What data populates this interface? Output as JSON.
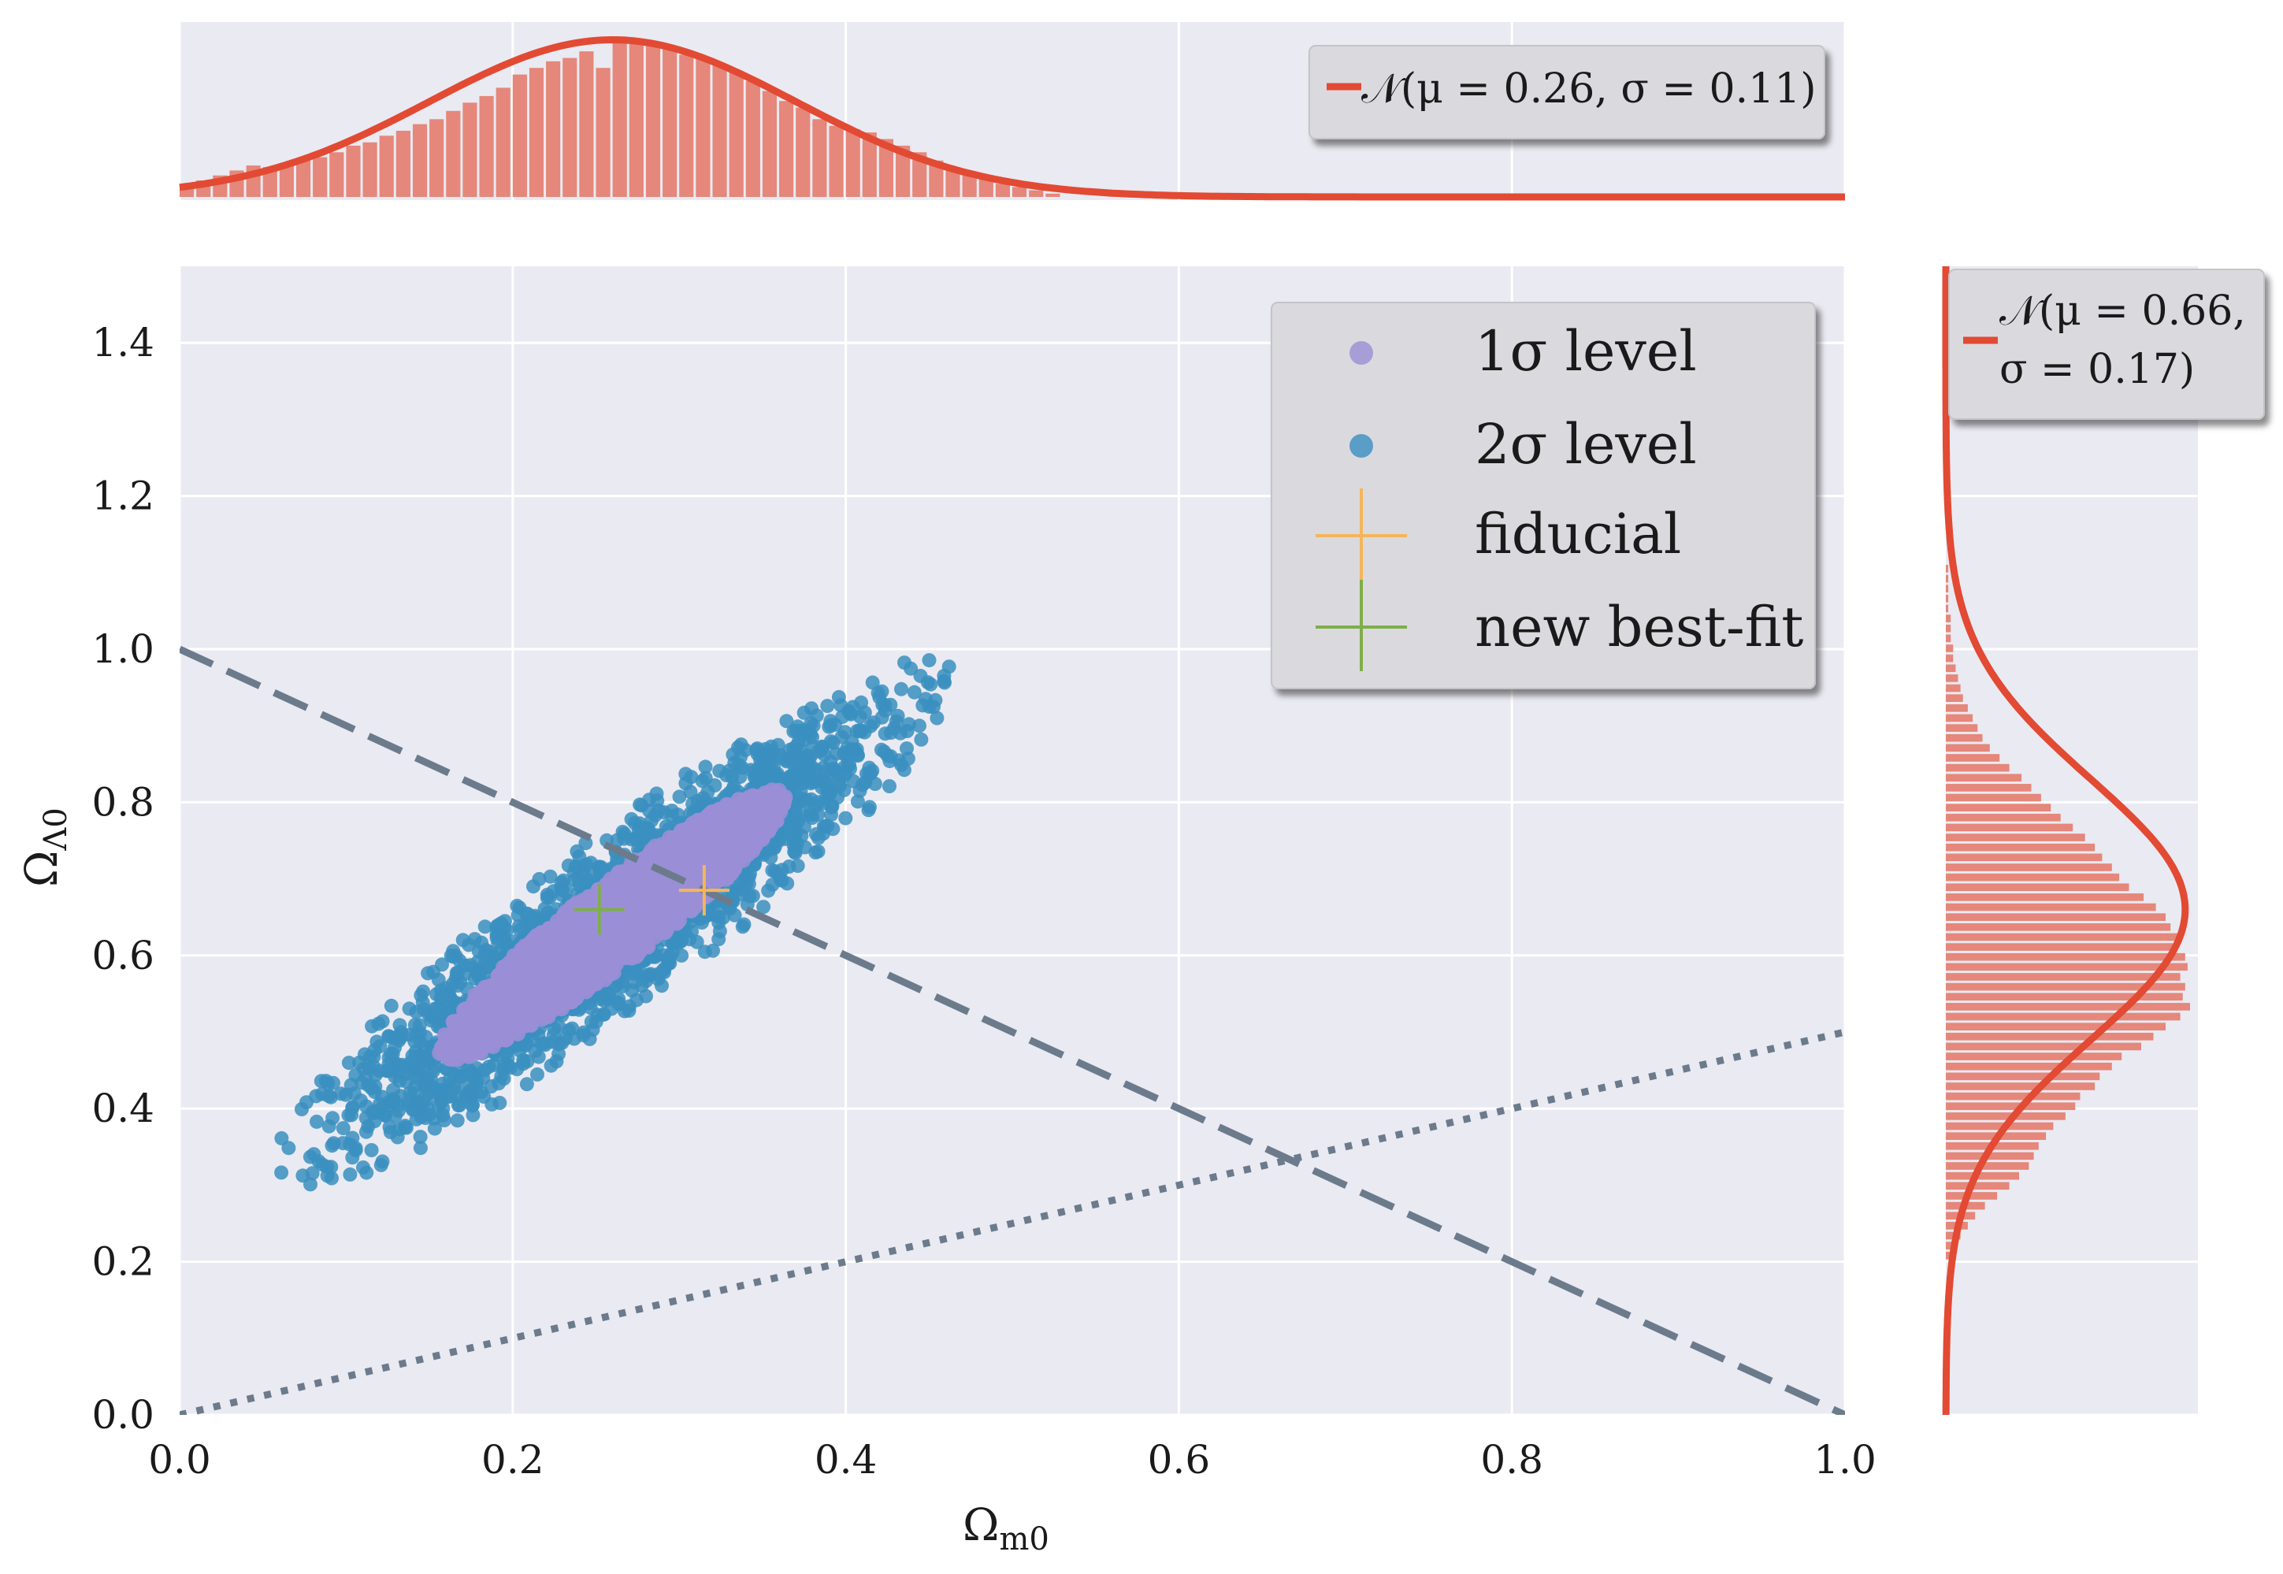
{
  "chart_data": [
    {
      "type": "scatter",
      "panel": "main",
      "xlabel": "Ω_m0",
      "ylabel": "Ω_Λ0",
      "xlim": [
        0.0,
        1.0
      ],
      "ylim": [
        0.0,
        1.5
      ],
      "xticks": [
        "0.0",
        "0.2",
        "0.4",
        "0.6",
        "0.8",
        "1.0"
      ],
      "yticks": [
        "0.0",
        "0.2",
        "0.4",
        "0.6",
        "0.8",
        "1.0",
        "1.2",
        "1.4"
      ],
      "grid": true,
      "legend_position": "top-right",
      "series": [
        {
          "name": "1σ level",
          "kind": "scatter-cloud",
          "color": "#9a8fd6",
          "extent": {
            "x_range": [
              0.03,
              0.45
            ],
            "y_range": [
              0.33,
              0.93
            ]
          }
        },
        {
          "name": "2σ level",
          "kind": "scatter-cloud",
          "color": "#3a8fc0",
          "extent": {
            "x_range": [
              0.0,
              0.55
            ],
            "y_range": [
              0.2,
              1.1
            ]
          }
        },
        {
          "name": "fiducial",
          "kind": "marker",
          "marker": "plus",
          "color": "#f5b55a",
          "x": 0.315,
          "y": 0.685
        },
        {
          "name": "new best-fit",
          "kind": "marker",
          "marker": "plus",
          "color": "#7fae4a",
          "x": 0.252,
          "y": 0.66
        }
      ],
      "reference_lines": [
        {
          "style": "dashed",
          "color": "#6b7b8c",
          "points": [
            [
              0.0,
              1.0
            ],
            [
              1.0,
              0.0
            ]
          ]
        },
        {
          "style": "dotted",
          "color": "#6b7b8c",
          "points": [
            [
              0.0,
              0.0
            ],
            [
              1.0,
              0.5
            ]
          ]
        }
      ]
    },
    {
      "type": "bar",
      "panel": "top-marginal",
      "variable": "Ω_m0",
      "orientation": "vertical",
      "color": "#e5877a",
      "bins": {
        "x_start": 0.0,
        "x_end": 0.53,
        "width": 0.01,
        "counts": [
          0.08,
          0.1,
          0.13,
          0.16,
          0.19,
          0.18,
          0.2,
          0.22,
          0.24,
          0.27,
          0.31,
          0.33,
          0.37,
          0.4,
          0.44,
          0.47,
          0.52,
          0.57,
          0.61,
          0.66,
          0.74,
          0.78,
          0.82,
          0.84,
          0.88,
          0.78,
          0.97,
          0.93,
          0.92,
          0.91,
          0.86,
          0.84,
          0.8,
          0.76,
          0.7,
          0.64,
          0.58,
          0.54,
          0.47,
          0.43,
          0.41,
          0.39,
          0.35,
          0.31,
          0.27,
          0.22,
          0.18,
          0.14,
          0.11,
          0.08,
          0.06,
          0.04,
          0.02
        ]
      },
      "fit": {
        "name": "𝒩(μ = 0.26, σ = 0.11)",
        "mu": 0.26,
        "sigma": 0.11,
        "peak": 0.95,
        "color": "#e24a33"
      },
      "legend_position": "top-right"
    },
    {
      "type": "bar",
      "panel": "right-marginal",
      "variable": "Ω_Λ0",
      "orientation": "horizontal",
      "color": "#e5877a",
      "bins": {
        "y_start": 0.2,
        "y_end": 1.11,
        "height": 0.013,
        "counts": [
          0.03,
          0.04,
          0.06,
          0.09,
          0.12,
          0.16,
          0.21,
          0.26,
          0.3,
          0.34,
          0.36,
          0.38,
          0.41,
          0.44,
          0.49,
          0.53,
          0.55,
          0.61,
          0.63,
          0.68,
          0.72,
          0.8,
          0.85,
          0.9,
          0.96,
          1.0,
          0.97,
          0.98,
          0.96,
          0.99,
          0.98,
          0.93,
          0.95,
          0.92,
          0.9,
          0.86,
          0.81,
          0.75,
          0.71,
          0.68,
          0.64,
          0.61,
          0.57,
          0.52,
          0.47,
          0.43,
          0.39,
          0.35,
          0.31,
          0.26,
          0.22,
          0.18,
          0.15,
          0.13,
          0.11,
          0.09,
          0.07,
          0.06,
          0.05,
          0.04,
          0.03,
          0.03,
          0.02,
          0.02,
          0.02,
          0.01,
          0.01,
          0.01,
          0.01,
          0.01
        ]
      },
      "fit": {
        "name": "𝒩(μ = 0.66, σ = 0.17)",
        "mu": 0.66,
        "sigma": 0.17,
        "peak": 0.98,
        "color": "#e24a33"
      },
      "legend_position": "top-right"
    }
  ],
  "labels": {
    "xlabel_base": "Ω",
    "xlabel_sub": "m0",
    "ylabel_base": "Ω",
    "ylabel_sub": "Λ0",
    "legend_1sigma": "1σ level",
    "legend_2sigma": "2σ level",
    "legend_fiducial": "fiducial",
    "legend_bestfit": "new best-fit",
    "top_fit_label": "𝒩(μ = 0.26, σ = 0.11)",
    "right_fit_line1": "𝒩(μ = 0.66,",
    "right_fit_line2": "σ = 0.17)"
  }
}
